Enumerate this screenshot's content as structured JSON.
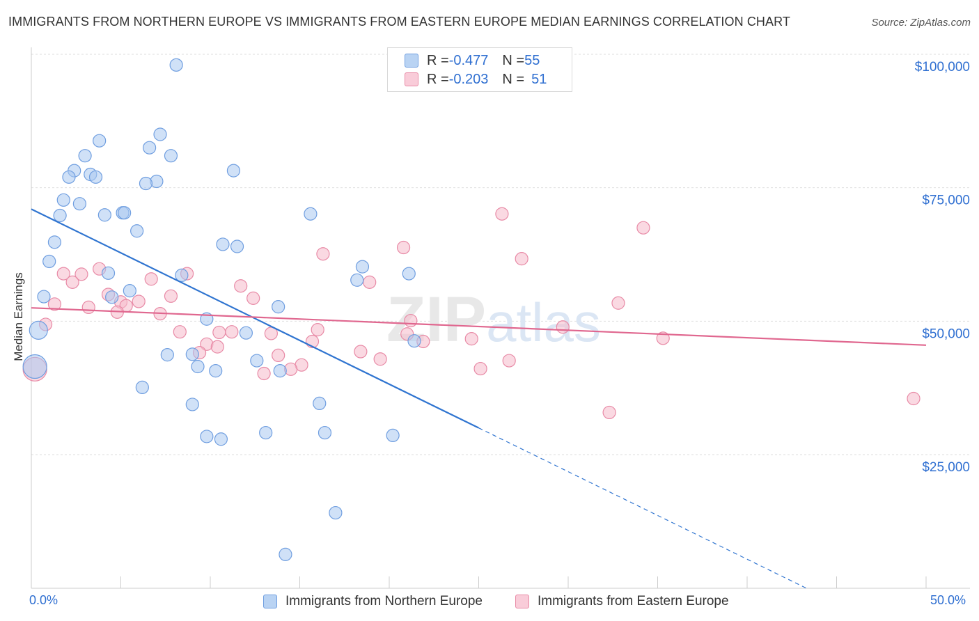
{
  "title": "IMMIGRANTS FROM NORTHERN EUROPE VS IMMIGRANTS FROM EASTERN EUROPE MEDIAN EARNINGS CORRELATION CHART",
  "source": "Source: ZipAtlas.com",
  "watermark": "ZIPatlas",
  "legend": {
    "rows": [
      {
        "r_label": "R = ",
        "r_value": "-0.477",
        "n_label": "N = ",
        "n_value": "55"
      },
      {
        "r_label": "R = ",
        "r_value": "-0.203",
        "n_label": "N = ",
        "n_value": "51"
      }
    ]
  },
  "colors": {
    "blue_fill": "#a9c8f0",
    "blue_stroke": "#6f9ee0",
    "blue_line": "#2f74d0",
    "pink_fill": "#f6b9cb",
    "pink_stroke": "#e88aa6",
    "pink_line": "#e0678f",
    "axis_label": "#2f6fd1",
    "grid": "#dedede"
  },
  "chart_data": {
    "type": "scatter",
    "title": "IMMIGRANTS FROM NORTHERN EUROPE VS IMMIGRANTS FROM EASTERN EUROPE MEDIAN EARNINGS CORRELATION CHART",
    "xlabel": "",
    "ylabel": "Median Earnings",
    "xlim": [
      0,
      50
    ],
    "ylim": [
      0,
      102000
    ],
    "x_tick_labels": [
      "0.0%",
      "50.0%"
    ],
    "y_ticks": [
      25000,
      50000,
      75000,
      100000
    ],
    "y_tick_labels": [
      "$25,000",
      "$50,000",
      "$75,000",
      "$100,000"
    ],
    "grid": true,
    "series": [
      {
        "name": "Immigrants from Northern Europe",
        "color": "#a9c8f0",
        "r": -0.477,
        "n": 55,
        "trend": {
          "x0": 0,
          "y0": 71000,
          "x_solid_end": 25,
          "slope": -1640,
          "x_dash_end": 43.3
        },
        "points": [
          [
            8.1,
            98000
          ],
          [
            3.8,
            83800
          ],
          [
            7.2,
            85000
          ],
          [
            3.0,
            81000
          ],
          [
            7.8,
            81000
          ],
          [
            6.6,
            82500
          ],
          [
            11.3,
            78200
          ],
          [
            2.4,
            78200
          ],
          [
            3.3,
            77500
          ],
          [
            3.6,
            77000
          ],
          [
            2.1,
            77000
          ],
          [
            7.0,
            76200
          ],
          [
            6.4,
            75800
          ],
          [
            1.8,
            72700
          ],
          [
            2.7,
            72000
          ],
          [
            1.6,
            69800
          ],
          [
            4.1,
            69900
          ],
          [
            5.1,
            70300
          ],
          [
            5.2,
            70300
          ],
          [
            15.6,
            70100
          ],
          [
            5.9,
            66900
          ],
          [
            1.3,
            64800
          ],
          [
            10.7,
            64400
          ],
          [
            11.5,
            64000
          ],
          [
            1.0,
            61200
          ],
          [
            18.5,
            60200
          ],
          [
            4.3,
            59000
          ],
          [
            21.1,
            58900
          ],
          [
            8.4,
            58600
          ],
          [
            18.2,
            57700
          ],
          [
            5.5,
            55700
          ],
          [
            0.7,
            54600
          ],
          [
            4.5,
            54500
          ],
          [
            13.8,
            52700
          ],
          [
            9.8,
            50400
          ],
          [
            0.4,
            48300
          ],
          [
            12.0,
            47800
          ],
          [
            21.4,
            46300
          ],
          [
            9.0,
            43800
          ],
          [
            7.6,
            43700
          ],
          [
            12.6,
            42600
          ],
          [
            9.3,
            41500
          ],
          [
            10.3,
            40700
          ],
          [
            13.9,
            40700
          ],
          [
            6.2,
            37600
          ],
          [
            9.0,
            34400
          ],
          [
            16.1,
            34600
          ],
          [
            16.4,
            29100
          ],
          [
            13.1,
            29100
          ],
          [
            9.8,
            28400
          ],
          [
            10.6,
            27900
          ],
          [
            20.2,
            28600
          ],
          [
            17.0,
            14100
          ],
          [
            14.2,
            6300
          ],
          [
            0.2,
            41500
          ]
        ]
      },
      {
        "name": "Immigrants from Eastern Europe",
        "color": "#f6b9cb",
        "r": -0.203,
        "n": 51,
        "trend": {
          "x0": 0,
          "y0": 52500,
          "x1": 50,
          "y1": 45500
        },
        "points": [
          [
            26.3,
            70100
          ],
          [
            34.2,
            67500
          ],
          [
            20.8,
            63800
          ],
          [
            16.3,
            62600
          ],
          [
            27.4,
            61700
          ],
          [
            3.8,
            59800
          ],
          [
            1.8,
            58900
          ],
          [
            2.8,
            58800
          ],
          [
            8.7,
            58900
          ],
          [
            6.7,
            57900
          ],
          [
            2.3,
            57300
          ],
          [
            18.9,
            57300
          ],
          [
            11.7,
            56600
          ],
          [
            4.3,
            55000
          ],
          [
            7.8,
            54700
          ],
          [
            12.4,
            54300
          ],
          [
            5.0,
            53600
          ],
          [
            6.0,
            53700
          ],
          [
            32.8,
            53400
          ],
          [
            1.3,
            53200
          ],
          [
            3.2,
            52600
          ],
          [
            5.3,
            52900
          ],
          [
            4.8,
            51700
          ],
          [
            7.2,
            51400
          ],
          [
            21.2,
            50100
          ],
          [
            0.8,
            49400
          ],
          [
            29.7,
            48900
          ],
          [
            8.3,
            48000
          ],
          [
            16.0,
            48400
          ],
          [
            11.2,
            48000
          ],
          [
            10.5,
            47900
          ],
          [
            13.4,
            47700
          ],
          [
            21.0,
            47600
          ],
          [
            24.6,
            46700
          ],
          [
            35.3,
            46800
          ],
          [
            15.7,
            46200
          ],
          [
            21.9,
            46200
          ],
          [
            9.8,
            45700
          ],
          [
            10.4,
            45200
          ],
          [
            9.4,
            44100
          ],
          [
            18.4,
            44300
          ],
          [
            13.8,
            43600
          ],
          [
            19.5,
            42900
          ],
          [
            26.7,
            42600
          ],
          [
            15.1,
            41800
          ],
          [
            25.1,
            41100
          ],
          [
            13.0,
            40200
          ],
          [
            32.3,
            32900
          ],
          [
            49.3,
            35500
          ],
          [
            0.2,
            41000
          ],
          [
            14.5,
            41000
          ]
        ]
      }
    ]
  },
  "bottom_legend": {
    "items": [
      "Immigrants from Northern Europe",
      "Immigrants from Eastern Europe"
    ]
  }
}
